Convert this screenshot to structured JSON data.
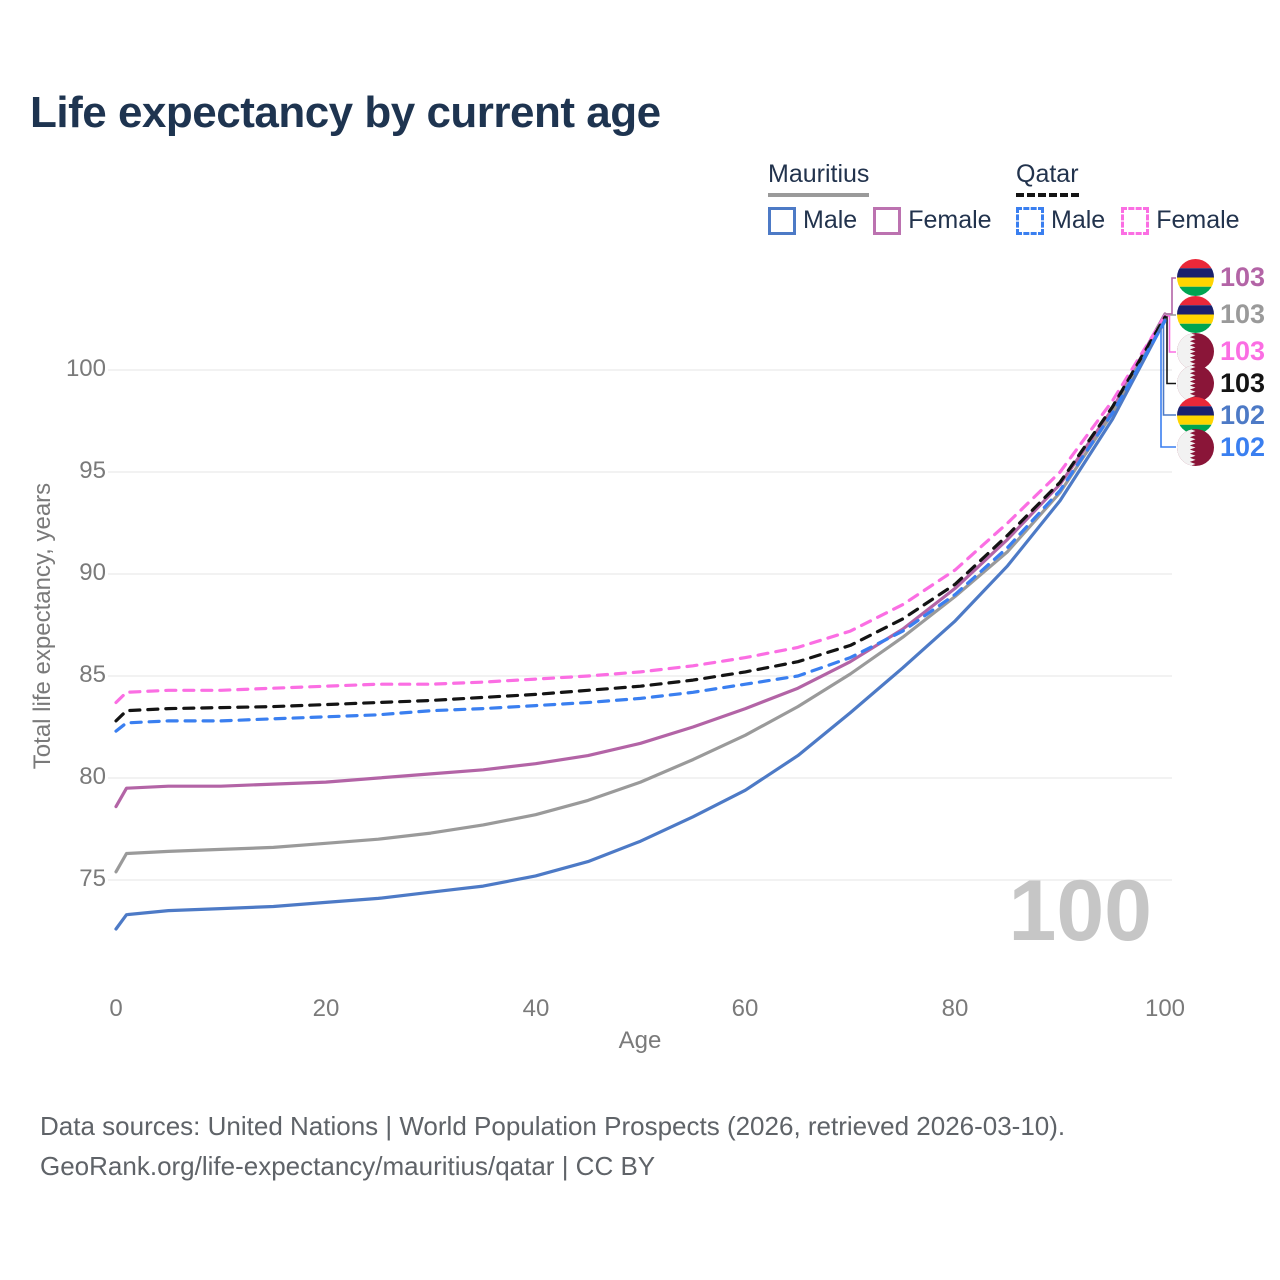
{
  "title": "Life expectancy by current age",
  "legend": {
    "groups": [
      {
        "label": "Mauritius",
        "line_style": "solid",
        "underline_color": "#9a9a9a",
        "items": [
          {
            "label": "Male",
            "color": "#4d7ac6",
            "line_style": "solid"
          },
          {
            "label": "Female",
            "color": "#bc72b0",
            "line_style": "solid"
          }
        ]
      },
      {
        "label": "Qatar",
        "line_style": "dashed",
        "underline_color": "#141414",
        "items": [
          {
            "label": "Male",
            "color": "#3a7ff0",
            "line_style": "dashed"
          },
          {
            "label": "Female",
            "color": "#fb6ee3",
            "line_style": "dashed"
          }
        ]
      }
    ]
  },
  "chart_data": {
    "type": "line",
    "title": "Life expectancy by current age",
    "xlabel": "Age",
    "ylabel": "Total life expectancy, years",
    "xlim": [
      0,
      100
    ],
    "ylim": [
      72,
      103.5
    ],
    "xticks": [
      0,
      20,
      40,
      60,
      80,
      100
    ],
    "yticks": [
      75,
      80,
      85,
      90,
      95,
      100
    ],
    "grid": "horizontal-only",
    "legend_position": "top-right",
    "x": [
      0,
      1,
      5,
      10,
      15,
      20,
      25,
      30,
      35,
      40,
      45,
      50,
      55,
      60,
      65,
      70,
      75,
      80,
      85,
      90,
      95,
      100
    ],
    "series": [
      {
        "name": "Mauritius Female",
        "country": "Mauritius",
        "sex": "Female",
        "color": "#b364a6",
        "line_style": "solid",
        "values": [
          78.6,
          79.5,
          79.6,
          79.6,
          79.7,
          79.8,
          80.0,
          80.2,
          80.4,
          80.7,
          81.1,
          81.7,
          82.5,
          83.4,
          84.4,
          85.7,
          87.3,
          89.3,
          91.7,
          94.4,
          98.1,
          102.75
        ]
      },
      {
        "name": "Mauritius",
        "country": "Mauritius",
        "sex": "Both",
        "color": "#9a9a9a",
        "line_style": "solid",
        "values": [
          75.4,
          76.3,
          76.4,
          76.5,
          76.6,
          76.8,
          77.0,
          77.3,
          77.7,
          78.2,
          78.9,
          79.8,
          80.9,
          82.1,
          83.5,
          85.1,
          86.9,
          88.9,
          91.1,
          94.0,
          97.9,
          102.7
        ]
      },
      {
        "name": "Qatar Female",
        "country": "Qatar",
        "sex": "Female",
        "color": "#fb6ee3",
        "line_style": "dashed",
        "values": [
          83.7,
          84.2,
          84.3,
          84.3,
          84.4,
          84.5,
          84.6,
          84.6,
          84.7,
          84.85,
          85.0,
          85.2,
          85.5,
          85.9,
          86.4,
          87.2,
          88.5,
          90.2,
          92.5,
          95.0,
          98.5,
          102.65
        ]
      },
      {
        "name": "Qatar",
        "country": "Qatar",
        "sex": "Both",
        "color": "#141414",
        "line_style": "dashed",
        "values": [
          82.8,
          83.3,
          83.4,
          83.45,
          83.5,
          83.6,
          83.7,
          83.8,
          83.95,
          84.1,
          84.3,
          84.5,
          84.8,
          85.2,
          85.7,
          86.5,
          87.8,
          89.5,
          91.9,
          94.5,
          98.2,
          102.6
        ]
      },
      {
        "name": "Mauritius Male",
        "country": "Mauritius",
        "sex": "Male",
        "color": "#4d7ac6",
        "line_style": "solid",
        "values": [
          72.6,
          73.3,
          73.5,
          73.6,
          73.7,
          73.9,
          74.1,
          74.4,
          74.7,
          75.2,
          75.9,
          76.9,
          78.1,
          79.4,
          81.1,
          83.2,
          85.4,
          87.7,
          90.4,
          93.6,
          97.6,
          102.45
        ]
      },
      {
        "name": "Qatar Male",
        "country": "Qatar",
        "sex": "Male",
        "color": "#3a7ff0",
        "line_style": "dashed",
        "values": [
          82.3,
          82.7,
          82.8,
          82.8,
          82.9,
          83.0,
          83.1,
          83.3,
          83.4,
          83.55,
          83.7,
          83.9,
          84.2,
          84.6,
          85.0,
          85.9,
          87.2,
          89.0,
          91.3,
          94.1,
          97.9,
          102.4
        ]
      }
    ]
  },
  "end_labels": [
    {
      "value": "103",
      "series": 0,
      "flag": "mauritius",
      "color": "#b364a6"
    },
    {
      "value": "103",
      "series": 1,
      "flag": "mauritius",
      "color": "#9a9a9a"
    },
    {
      "value": "103",
      "series": 2,
      "flag": "qatar",
      "color": "#fb6ee3"
    },
    {
      "value": "103",
      "series": 3,
      "flag": "qatar",
      "color": "#141414"
    },
    {
      "value": "102",
      "series": 4,
      "flag": "mauritius",
      "color": "#4d7ac6"
    },
    {
      "value": "102",
      "series": 5,
      "flag": "qatar",
      "color": "#3a7ff0"
    }
  ],
  "axes": {
    "x_label": "Age",
    "y_label": "Total life expectancy, years",
    "x_ticks": [
      "0",
      "20",
      "40",
      "60",
      "80",
      "100"
    ],
    "y_ticks": [
      "75",
      "80",
      "85",
      "90",
      "95",
      "100"
    ]
  },
  "watermark": "100",
  "footer": {
    "line1": "Data sources: United Nations | World Population Prospects (2026, retrieved 2026-03-10).",
    "line2": "GeoRank.org/life-expectancy/mauritius/qatar | CC BY"
  },
  "colors": {
    "title_text": "#1e3450",
    "tick_text": "#7a7a7a",
    "gridline": "#e9e9e9",
    "watermark": "#c6c6c6",
    "footer_text": "#5f6368",
    "flag_mauritius": [
      "#ea2839",
      "#1a206d",
      "#ffd500",
      "#00a551"
    ],
    "flag_qatar": [
      "#8a1538",
      "#f2f2f2"
    ]
  }
}
